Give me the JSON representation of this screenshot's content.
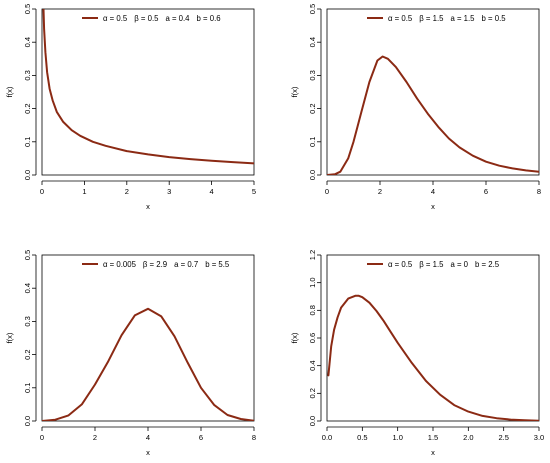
{
  "colors": {
    "curve": "#8B2A14",
    "axis": "#000000",
    "background": "#ffffff"
  },
  "chart_data": [
    {
      "type": "line",
      "title": "",
      "xlabel": "x",
      "ylabel": "f(x)",
      "xlim": [
        0,
        5
      ],
      "ylim": [
        0,
        0.5
      ],
      "xticks": [
        "0",
        "1",
        "2",
        "3",
        "4",
        "5"
      ],
      "yticks": [
        "0.0",
        "0.1",
        "0.2",
        "0.3",
        "0.4",
        "0.5"
      ],
      "grid": false,
      "legend": {
        "placement": "top-right",
        "entries": [
          {
            "label": "α = 0.5",
            "values": [
              "β = 0.5",
              "a = 0.4",
              "b = 0.6"
            ]
          }
        ]
      },
      "series": [
        {
          "x": [
            0.03,
            0.05,
            0.08,
            0.12,
            0.18,
            0.25,
            0.35,
            0.5,
            0.7,
            0.9,
            1.2,
            1.5,
            2.0,
            2.5,
            3.0,
            3.5,
            4.0,
            4.5,
            5.0
          ],
          "y": [
            0.52,
            0.44,
            0.37,
            0.31,
            0.26,
            0.225,
            0.19,
            0.16,
            0.135,
            0.118,
            0.1,
            0.088,
            0.072,
            0.062,
            0.054,
            0.048,
            0.043,
            0.039,
            0.035
          ]
        }
      ]
    },
    {
      "type": "line",
      "title": "",
      "xlabel": "x",
      "ylabel": "f(x)",
      "xlim": [
        0,
        8
      ],
      "ylim": [
        0,
        0.5
      ],
      "xticks": [
        "0",
        "2",
        "4",
        "6",
        "8"
      ],
      "yticks": [
        "0.0",
        "0.1",
        "0.2",
        "0.3",
        "0.4",
        "0.5"
      ],
      "grid": false,
      "legend": {
        "placement": "top-right",
        "entries": [
          {
            "label": "α = 0.5",
            "values": [
              "β = 1.5",
              "a = 1.5",
              "b = 0.5"
            ]
          }
        ]
      },
      "series": [
        {
          "x": [
            0,
            0.3,
            0.5,
            0.8,
            1.0,
            1.3,
            1.6,
            1.9,
            2.1,
            2.3,
            2.6,
            3.0,
            3.4,
            3.8,
            4.2,
            4.6,
            5.0,
            5.5,
            6.0,
            6.5,
            7.0,
            7.5,
            8.0
          ],
          "y": [
            0.0,
            0.002,
            0.01,
            0.05,
            0.1,
            0.19,
            0.28,
            0.345,
            0.357,
            0.35,
            0.325,
            0.28,
            0.23,
            0.185,
            0.145,
            0.11,
            0.083,
            0.058,
            0.04,
            0.028,
            0.02,
            0.014,
            0.01
          ]
        }
      ]
    },
    {
      "type": "line",
      "title": "",
      "xlabel": "x",
      "ylabel": "f(x)",
      "xlim": [
        0,
        8
      ],
      "ylim": [
        0,
        0.5
      ],
      "xticks": [
        "0",
        "2",
        "4",
        "6",
        "8"
      ],
      "yticks": [
        "0.0",
        "0.1",
        "0.2",
        "0.3",
        "0.4",
        "0.5"
      ],
      "grid": false,
      "legend": {
        "placement": "top-right",
        "entries": [
          {
            "label": "α = 0.005",
            "values": [
              "β = 2.9",
              "a = 0.7",
              "b = 5.5"
            ]
          }
        ]
      },
      "series": [
        {
          "x": [
            0,
            0.5,
            1.0,
            1.5,
            2.0,
            2.5,
            3.0,
            3.5,
            4.0,
            4.5,
            5.0,
            5.5,
            6.0,
            6.5,
            7.0,
            7.5,
            8.0
          ],
          "y": [
            0.0,
            0.004,
            0.017,
            0.05,
            0.11,
            0.18,
            0.258,
            0.318,
            0.338,
            0.315,
            0.255,
            0.175,
            0.1,
            0.048,
            0.018,
            0.006,
            0.001
          ]
        }
      ]
    },
    {
      "type": "line",
      "title": "",
      "xlabel": "x",
      "ylabel": "f(x)",
      "xlim": [
        0,
        3
      ],
      "ylim": [
        0,
        1.2
      ],
      "xticks": [
        "0.0",
        "0.5",
        "1.0",
        "1.5",
        "2.0",
        "2.5",
        "3.0"
      ],
      "yticks": [
        "0.0",
        "0.2",
        "0.4",
        "0.6",
        "0.8",
        "1.0",
        "1.2"
      ],
      "grid": false,
      "legend": {
        "placement": "top-right",
        "entries": [
          {
            "label": "α = 0.5",
            "values": [
              "β = 1.5",
              "a = 0",
              "b = 2.5"
            ]
          }
        ]
      },
      "series": [
        {
          "x": [
            0.02,
            0.06,
            0.1,
            0.15,
            0.2,
            0.3,
            0.4,
            0.45,
            0.5,
            0.6,
            0.7,
            0.8,
            0.9,
            1.0,
            1.2,
            1.4,
            1.6,
            1.8,
            2.0,
            2.2,
            2.4,
            2.6,
            2.8,
            3.0
          ],
          "y": [
            0.33,
            0.54,
            0.66,
            0.75,
            0.82,
            0.885,
            0.905,
            0.905,
            0.895,
            0.855,
            0.795,
            0.725,
            0.645,
            0.565,
            0.42,
            0.29,
            0.19,
            0.115,
            0.068,
            0.037,
            0.02,
            0.01,
            0.005,
            0.002
          ]
        }
      ]
    }
  ]
}
